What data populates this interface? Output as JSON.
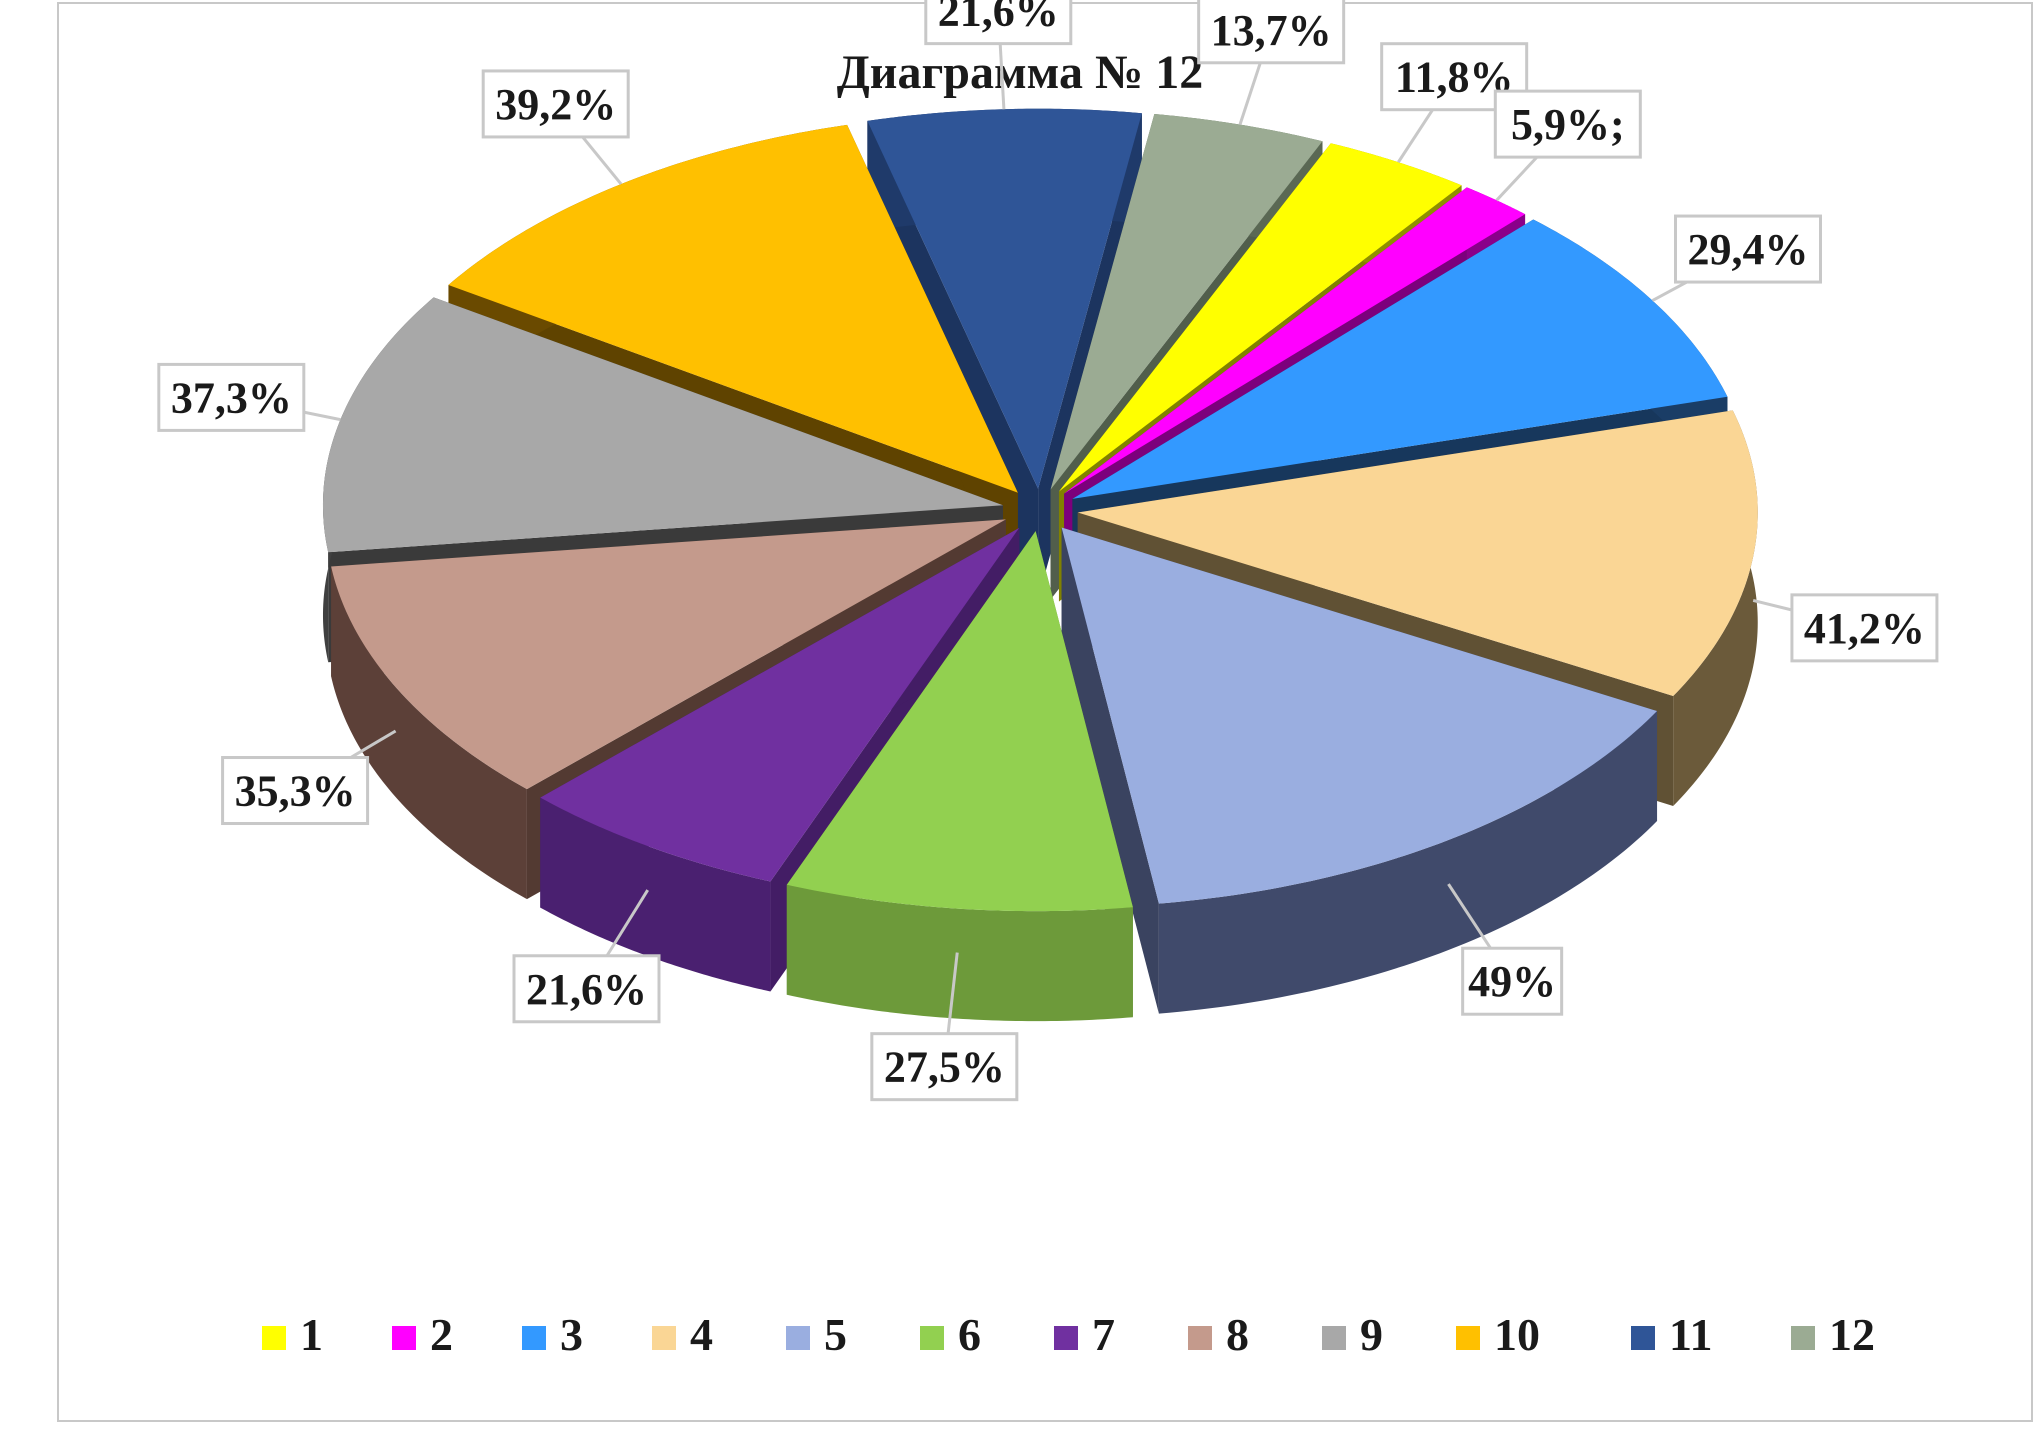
{
  "chart_data": {
    "type": "pie",
    "title": "Диаграмма  № 12",
    "categories": [
      "1",
      "2",
      "3",
      "4",
      "5",
      "6",
      "7",
      "8",
      "9",
      "10",
      "11",
      "12"
    ],
    "values": [
      11.8,
      5.9,
      29.4,
      41.2,
      49,
      27.5,
      21.6,
      35.3,
      37.3,
      39.2,
      21.6,
      13.7
    ],
    "data_labels": [
      "11,8%",
      "5,9%;",
      "29,4%",
      "41,2%",
      "49%",
      "27,5%",
      "21,6%",
      "35,3%",
      "37,3%",
      "39,2%",
      "21,6%",
      "13,7%"
    ],
    "colors": [
      "#ffff00",
      "#ff00ff",
      "#3399ff",
      "#fad695",
      "#9aaee0",
      "#92d050",
      "#7030a0",
      "#c49a8c",
      "#a8a8a8",
      "#ffc000",
      "#2f5597",
      "#9bab93"
    ],
    "side_colors": [
      "#8f8f00",
      "#8a008a",
      "#1a3d66",
      "#6b5a3a",
      "#404a6b",
      "#6d9a3a",
      "#4a2070",
      "#5c4038",
      "#404040",
      "#6a4a00",
      "#1f3a6a",
      "#5a6854"
    ],
    "legend": {
      "position": "bottom"
    },
    "style": "3d-exploded-pie"
  }
}
